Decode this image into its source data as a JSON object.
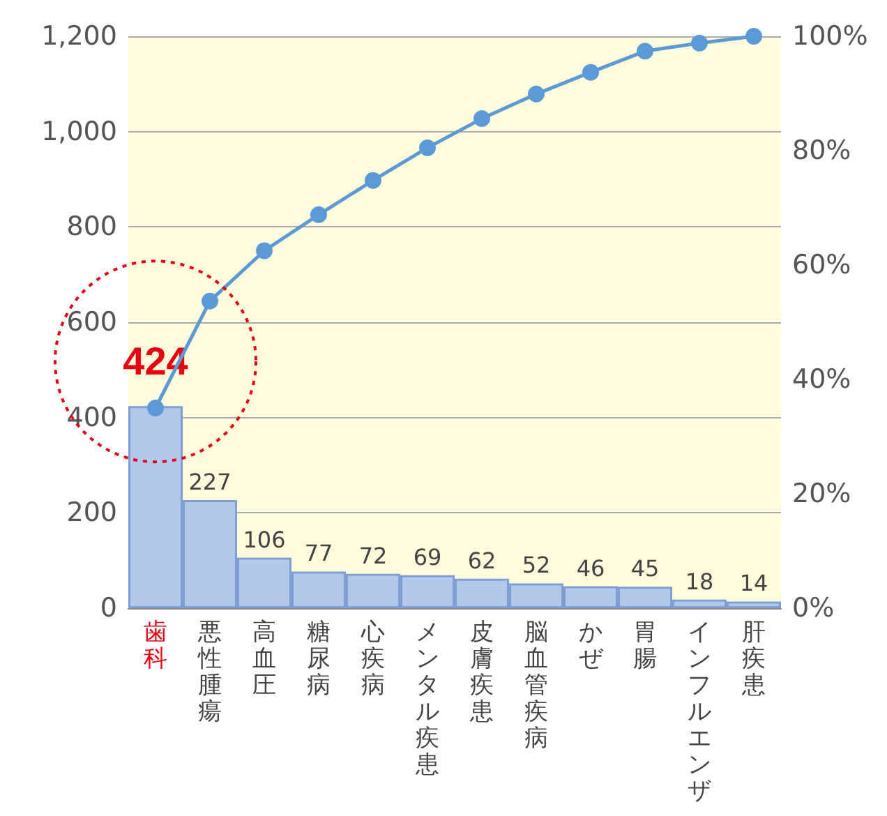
{
  "chart_data": {
    "type": "bar",
    "categories": [
      "歯科",
      "悪性腫瘍",
      "高血圧",
      "糖尿病",
      "心疾病",
      "メンタル疾患",
      "皮膚疾患",
      "脳血管疾病",
      "かぜ",
      "胃腸",
      "インフルエンザ",
      "肝疾患"
    ],
    "series": [
      {
        "color": "#b4c8ec",
        "values": [
          424,
          227,
          106,
          77,
          72,
          69,
          62,
          52,
          46,
          45,
          18,
          14
        ],
        "value_labels": [
          "424",
          "227",
          "106",
          "77",
          "72",
          "69",
          "62",
          "52",
          "46",
          "45",
          "18",
          "14"
        ]
      },
      {
        "type": "line",
        "axis": "y2",
        "color": "#5b9bd5",
        "values": [
          35.0,
          53.7,
          62.5,
          68.8,
          74.8,
          80.5,
          85.6,
          89.9,
          93.7,
          97.4,
          98.8,
          100
        ]
      }
    ],
    "marker": "circle",
    "grid": "y",
    "ylim": [
      0,
      1200
    ],
    "yticks": [
      {
        "value": 0,
        "label": "0"
      },
      {
        "value": 200,
        "label": "200"
      },
      {
        "value": 400,
        "label": "400"
      },
      {
        "value": 600,
        "label": "600"
      },
      {
        "value": 800,
        "label": "800"
      },
      {
        "value": 1000,
        "label": "1,000"
      },
      {
        "value": 1200,
        "label": "1,200"
      }
    ],
    "y2lim": [
      0,
      100
    ],
    "y2ticks": [
      {
        "value": 0,
        "label": "0%"
      },
      {
        "value": 20,
        "label": "20%"
      },
      {
        "value": 40,
        "label": "40%"
      },
      {
        "value": 60,
        "label": "60%"
      },
      {
        "value": 80,
        "label": "80%"
      },
      {
        "value": 100,
        "label": "100%"
      }
    ]
  }
}
